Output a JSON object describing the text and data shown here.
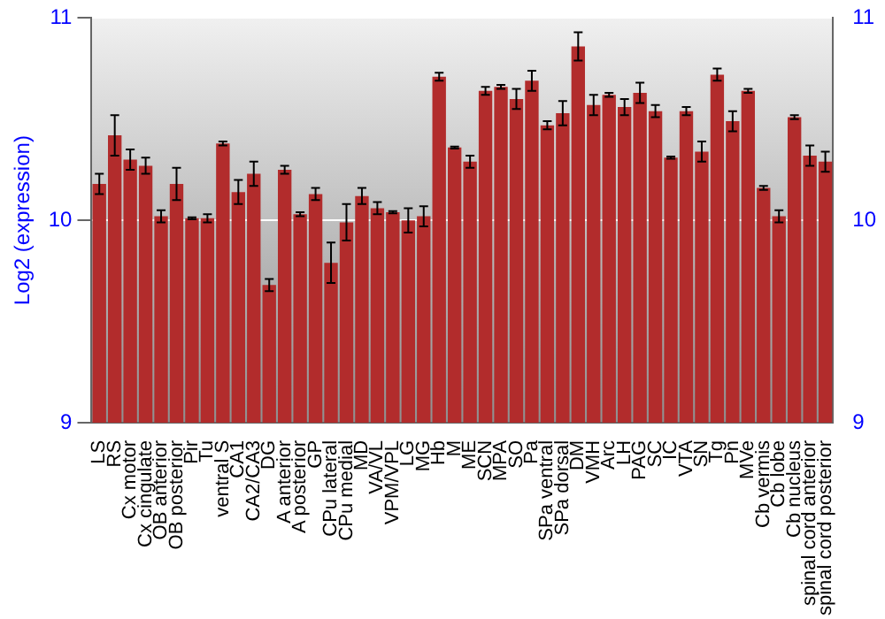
{
  "chart_data": {
    "type": "bar",
    "ylabel": "Log2 (expression)",
    "categories": [
      "LS",
      "RS",
      "Cx motor",
      "Cx cingulate",
      "OB anterior",
      "OB posterior",
      "Pir",
      "Tu",
      "ventral S",
      "CA1",
      "CA2/CA3",
      "DG",
      "A anterior",
      "A posterior",
      "GP",
      "CPu lateral",
      "CPu medial",
      "MD",
      "VA/VL",
      "VPM/VPL",
      "LG",
      "MG",
      "Hb",
      "M",
      "ME",
      "SCN",
      "MPA",
      "SO",
      "Pa",
      "SPa ventral",
      "SPa dorsal",
      "DM",
      "VMH",
      "Arc",
      "LH",
      "PAG",
      "SC",
      "IC",
      "VTA",
      "SN",
      "Tg",
      "Pn",
      "MVe",
      "Cb vermis",
      "Cb lobe",
      "Cb nucleus",
      "spinal cord anterior",
      "spinal cord posterior"
    ],
    "values": [
      10.18,
      10.42,
      10.3,
      10.27,
      10.02,
      10.18,
      10.01,
      10.01,
      10.38,
      10.14,
      10.23,
      9.68,
      10.25,
      10.03,
      10.13,
      9.79,
      9.99,
      10.12,
      10.06,
      10.04,
      10.0,
      10.02,
      10.71,
      10.36,
      10.29,
      10.64,
      10.66,
      10.6,
      10.69,
      10.47,
      10.53,
      10.86,
      10.57,
      10.62,
      10.56,
      10.63,
      10.54,
      10.31,
      10.54,
      10.34,
      10.72,
      10.49,
      10.64,
      10.16,
      10.02,
      10.51,
      10.32,
      10.29
    ],
    "errors": [
      0.05,
      0.1,
      0.05,
      0.04,
      0.03,
      0.08,
      0.005,
      0.02,
      0.01,
      0.06,
      0.06,
      0.03,
      0.02,
      0.01,
      0.03,
      0.1,
      0.09,
      0.04,
      0.03,
      0.005,
      0.06,
      0.05,
      0.02,
      0.005,
      0.03,
      0.02,
      0.01,
      0.05,
      0.05,
      0.02,
      0.06,
      0.07,
      0.05,
      0.01,
      0.04,
      0.05,
      0.03,
      0.005,
      0.02,
      0.05,
      0.03,
      0.05,
      0.01,
      0.01,
      0.03,
      0.01,
      0.05,
      0.05
    ],
    "color": "#b22c2c",
    "ylim": [
      9,
      11
    ],
    "yticks": [
      9,
      10,
      11
    ],
    "y2lim": [
      9,
      11
    ],
    "y2ticks": [
      9,
      10,
      11
    ],
    "grid": "y",
    "legend": false
  }
}
